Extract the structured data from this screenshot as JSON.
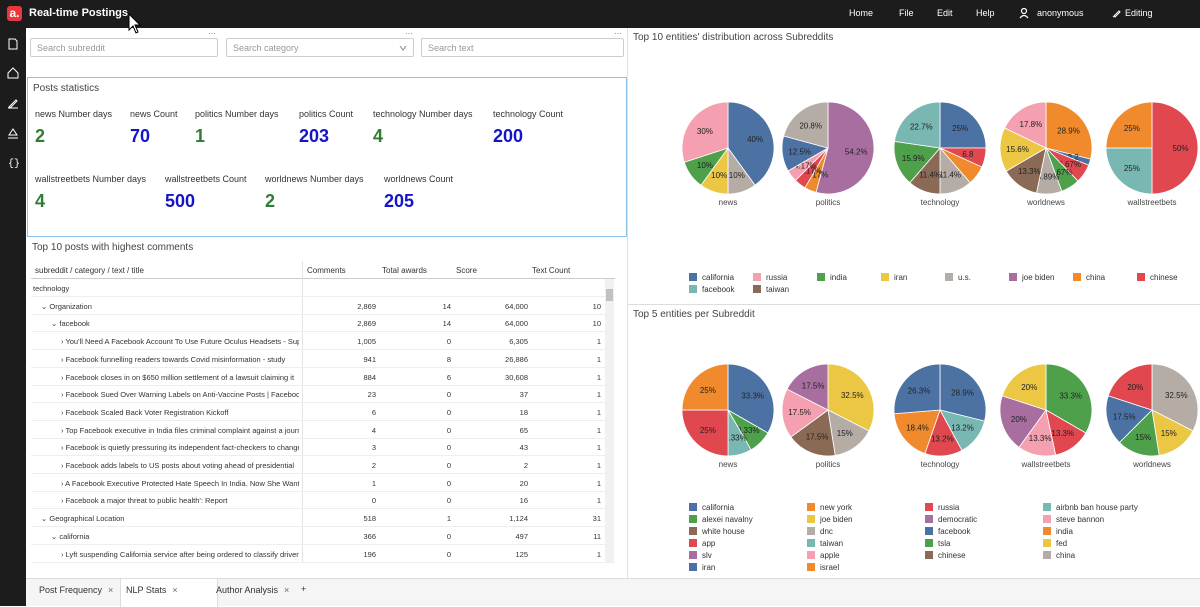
{
  "app": {
    "title": "Real-time Postings",
    "logo": "a."
  },
  "nav": {
    "home": "Home",
    "file": "File",
    "edit": "Edit",
    "help": "Help",
    "user": "anonymous",
    "editing": "Editing"
  },
  "filters": {
    "subreddit": "Search subreddit",
    "category": "Search category",
    "text": "Search text"
  },
  "stats": {
    "title": "Posts statistics",
    "items": [
      {
        "label": "news Number days",
        "value": "2",
        "color": "green"
      },
      {
        "label": "news Count",
        "value": "70",
        "color": "blue"
      },
      {
        "label": "politics Number days",
        "value": "1",
        "color": "green"
      },
      {
        "label": "politics Count",
        "value": "203",
        "color": "blue"
      },
      {
        "label": "technology Number days",
        "value": "4",
        "color": "green"
      },
      {
        "label": "technology Count",
        "value": "200",
        "color": "blue"
      },
      {
        "label": "wallstreetbets Number days",
        "value": "4",
        "color": "green"
      },
      {
        "label": "wallstreetbets Count",
        "value": "500",
        "color": "blue"
      },
      {
        "label": "worldnews Number days",
        "value": "2",
        "color": "green"
      },
      {
        "label": "worldnews Count",
        "value": "205",
        "color": "blue"
      }
    ]
  },
  "grid": {
    "title": "Top 10 posts with highest comments",
    "headers": [
      "subreddit / category / text / title",
      "Comments",
      "Total awards",
      "Score",
      "Text Count"
    ],
    "rows": [
      {
        "indent": 0,
        "label": "technology",
        "toggle": "",
        "c": "",
        "a": "",
        "s": "",
        "t": ""
      },
      {
        "indent": 1,
        "label": "Organization",
        "toggle": "⌄",
        "c": "2,869",
        "a": "14",
        "s": "64,000",
        "t": "10"
      },
      {
        "indent": 2,
        "label": "facebook",
        "toggle": "⌄",
        "c": "2,869",
        "a": "14",
        "s": "64,000",
        "t": "10"
      },
      {
        "indent": 3,
        "label": "You'll Need A Facebook Account To Use Future Oculus Headsets - Supporting",
        "toggle": "›",
        "c": "1,005",
        "a": "0",
        "s": "6,305",
        "t": "1"
      },
      {
        "indent": 3,
        "label": "Facebook funnelling readers towards Covid misinformation - study",
        "toggle": "›",
        "c": "941",
        "a": "8",
        "s": "26,886",
        "t": "1"
      },
      {
        "indent": 3,
        "label": "Facebook closes in on $650 million settlement of a lawsuit claiming it",
        "toggle": "›",
        "c": "884",
        "a": "6",
        "s": "30,608",
        "t": "1"
      },
      {
        "indent": 3,
        "label": "Facebook Sued Over Warning Labels on Anti-Vaccine Posts | Facebook",
        "toggle": "›",
        "c": "23",
        "a": "0",
        "s": "37",
        "t": "1"
      },
      {
        "indent": 3,
        "label": "Facebook Scaled Back Voter Registration Kickoff",
        "toggle": "›",
        "c": "6",
        "a": "0",
        "s": "18",
        "t": "1"
      },
      {
        "indent": 3,
        "label": "Top Facebook executive in India files criminal complaint against a journalist",
        "toggle": "›",
        "c": "4",
        "a": "0",
        "s": "65",
        "t": "1"
      },
      {
        "indent": 3,
        "label": "Facebook is quietly pressuring its independent fact-checkers to change",
        "toggle": "›",
        "c": "3",
        "a": "0",
        "s": "43",
        "t": "1"
      },
      {
        "indent": 3,
        "label": "Facebook adds labels to US posts about voting ahead of presidential",
        "toggle": "›",
        "c": "2",
        "a": "0",
        "s": "2",
        "t": "1"
      },
      {
        "indent": 3,
        "label": "A Facebook Executive Protected Hate Speech In India. Now She Wants",
        "toggle": "›",
        "c": "1",
        "a": "0",
        "s": "20",
        "t": "1"
      },
      {
        "indent": 3,
        "label": "Facebook a major threat to public health': Report",
        "toggle": "›",
        "c": "0",
        "a": "0",
        "s": "16",
        "t": "1"
      },
      {
        "indent": 1,
        "label": "Geographical Location",
        "toggle": "⌄",
        "c": "518",
        "a": "1",
        "s": "1,124",
        "t": "31"
      },
      {
        "indent": 2,
        "label": "california",
        "toggle": "⌄",
        "c": "366",
        "a": "0",
        "s": "497",
        "t": "11"
      },
      {
        "indent": 3,
        "label": "Lyft suspending California service after being ordered to classify drivers",
        "toggle": "›",
        "c": "196",
        "a": "0",
        "s": "125",
        "t": "1"
      }
    ]
  },
  "pies_top": {
    "title": "Top 10 entities' distribution across Subreddits",
    "pies": [
      {
        "name": "news",
        "slices": [
          {
            "v": 40,
            "c": "#4c72a4",
            "l": "40%"
          },
          {
            "v": 10,
            "c": "#b5aca6",
            "l": "10%"
          },
          {
            "v": 10,
            "c": "#ecc744",
            "l": "10%"
          },
          {
            "v": 10,
            "c": "#4ea04a",
            "l": "10%"
          },
          {
            "v": 30,
            "c": "#f4a0b0",
            "l": "30%"
          }
        ]
      },
      {
        "name": "politics",
        "slices": [
          {
            "v": 54.2,
            "c": "#a86ea0",
            "l": "54.2%"
          },
          {
            "v": 4.17,
            "c": "#f08a2c",
            "l": "4.17%"
          },
          {
            "v": 4.17,
            "c": "#e1474f",
            "l": "4.17%"
          },
          {
            "v": 4.17,
            "c": "#f4a0b0",
            "l": "4.17%"
          },
          {
            "v": 12.5,
            "c": "#4c72a4",
            "l": "12.5%"
          },
          {
            "v": 20.8,
            "c": "#b5aca6",
            "l": "20.8%"
          }
        ]
      },
      {
        "name": "technology",
        "slices": [
          {
            "v": 25,
            "c": "#4c72a4",
            "l": "25%"
          },
          {
            "v": 6.8,
            "c": "#e1474f",
            "l": "6.8"
          },
          {
            "v": 6.8,
            "c": "#f08a2c",
            "l": ""
          },
          {
            "v": 11.4,
            "c": "#b5aca6",
            "l": "11.4%"
          },
          {
            "v": 11.4,
            "c": "#8b6a55",
            "l": "11.4%"
          },
          {
            "v": 15.9,
            "c": "#4ea04a",
            "l": "15.9%"
          },
          {
            "v": 22.7,
            "c": "#79b7b2",
            "l": "22.7%"
          }
        ]
      },
      {
        "name": "worldnews",
        "slices": [
          {
            "v": 28.9,
            "c": "#f08a2c",
            "l": "28.9%"
          },
          {
            "v": 2.2,
            "c": "#4c72a4",
            "l": "2.2"
          },
          {
            "v": 6.67,
            "c": "#e1474f",
            "l": "6.67%"
          },
          {
            "v": 6.67,
            "c": "#4ea04a",
            "l": "6.67%"
          },
          {
            "v": 8.89,
            "c": "#b5aca6",
            "l": "8.89%"
          },
          {
            "v": 13.3,
            "c": "#8b6a55",
            "l": "13.3%"
          },
          {
            "v": 15.6,
            "c": "#ecc744",
            "l": "15.6%"
          },
          {
            "v": 17.8,
            "c": "#f4a0b0",
            "l": "17.8%"
          }
        ]
      },
      {
        "name": "wallstreetbets",
        "slices": [
          {
            "v": 50,
            "c": "#e1474f",
            "l": "50%"
          },
          {
            "v": 25,
            "c": "#79b7b2",
            "l": "25%"
          },
          {
            "v": 25,
            "c": "#f08a2c",
            "l": "25%"
          }
        ]
      }
    ],
    "legend": [
      {
        "label": "california",
        "c": "#4c72a4"
      },
      {
        "label": "russia",
        "c": "#f4a0b0"
      },
      {
        "label": "india",
        "c": "#4ea04a"
      },
      {
        "label": "iran",
        "c": "#ecc744"
      },
      {
        "label": "u.s.",
        "c": "#b5aca6"
      },
      {
        "label": "joe biden",
        "c": "#a86ea0"
      },
      {
        "label": "china",
        "c": "#f08a2c"
      },
      {
        "label": "chinese",
        "c": "#e1474f"
      },
      {
        "label": "facebook",
        "c": "#79b7b2"
      },
      {
        "label": "taiwan",
        "c": "#8b6a55"
      }
    ]
  },
  "pies_bottom": {
    "title": "Top 5 entities per Subreddit",
    "pies": [
      {
        "name": "news",
        "slices": [
          {
            "v": 33.3,
            "c": "#4c72a4",
            "l": "33.3%"
          },
          {
            "v": 8.33,
            "c": "#4ea04a",
            "l": "8.33%"
          },
          {
            "v": 8.33,
            "c": "#79b7b2",
            "l": "8.33%"
          },
          {
            "v": 25,
            "c": "#e1474f",
            "l": "25%"
          },
          {
            "v": 25,
            "c": "#f08a2c",
            "l": "25%"
          }
        ]
      },
      {
        "name": "politics",
        "slices": [
          {
            "v": 32.5,
            "c": "#ecc744",
            "l": "32.5%"
          },
          {
            "v": 15,
            "c": "#b5aca6",
            "l": "15%"
          },
          {
            "v": 17.5,
            "c": "#8b6a55",
            "l": "17.5%"
          },
          {
            "v": 17.5,
            "c": "#f4a0b0",
            "l": "17.5%"
          },
          {
            "v": 17.5,
            "c": "#a86ea0",
            "l": "17.5%"
          }
        ]
      },
      {
        "name": "technology",
        "slices": [
          {
            "v": 28.9,
            "c": "#4c72a4",
            "l": "28.9%"
          },
          {
            "v": 13.2,
            "c": "#79b7b2",
            "l": "13.2%"
          },
          {
            "v": 13.2,
            "c": "#e1474f",
            "l": "13.2%"
          },
          {
            "v": 18.4,
            "c": "#f08a2c",
            "l": "18.4%"
          },
          {
            "v": 26.3,
            "c": "#4c72a4",
            "l": "26.3%"
          }
        ]
      },
      {
        "name": "wallstreetbets",
        "slices": [
          {
            "v": 33.3,
            "c": "#4ea04a",
            "l": "33.3%"
          },
          {
            "v": 13.3,
            "c": "#e1474f",
            "l": "13.3%"
          },
          {
            "v": 13.3,
            "c": "#f4a0b0",
            "l": "13.3%"
          },
          {
            "v": 20,
            "c": "#a86ea0",
            "l": "20%"
          },
          {
            "v": 20,
            "c": "#ecc744",
            "l": "20%"
          }
        ]
      },
      {
        "name": "worldnews",
        "slices": [
          {
            "v": 32.5,
            "c": "#b5aca6",
            "l": "32.5%"
          },
          {
            "v": 15,
            "c": "#ecc744",
            "l": "15%"
          },
          {
            "v": 15,
            "c": "#4ea04a",
            "l": "15%"
          },
          {
            "v": 17.5,
            "c": "#4c72a4",
            "l": "17.5%"
          },
          {
            "v": 20,
            "c": "#e1474f",
            "l": "20%"
          }
        ]
      }
    ],
    "legend": [
      {
        "label": "california",
        "c": "#4c72a4"
      },
      {
        "label": "new york",
        "c": "#f08a2c"
      },
      {
        "label": "russia",
        "c": "#e1474f"
      },
      {
        "label": "airbnb ban house party",
        "c": "#79b7b2"
      },
      {
        "label": "alexei navalny",
        "c": "#4ea04a"
      },
      {
        "label": "joe biden",
        "c": "#ecc744"
      },
      {
        "label": "democratic",
        "c": "#a86ea0"
      },
      {
        "label": "steve bannon",
        "c": "#f4a0b0"
      },
      {
        "label": "white house",
        "c": "#8b6a55"
      },
      {
        "label": "dnc",
        "c": "#b5aca6"
      },
      {
        "label": "facebook",
        "c": "#4c72a4"
      },
      {
        "label": "india",
        "c": "#f08a2c"
      },
      {
        "label": "app",
        "c": "#e1474f"
      },
      {
        "label": "taiwan",
        "c": "#79b7b2"
      },
      {
        "label": "tsla",
        "c": "#4ea04a"
      },
      {
        "label": "fed",
        "c": "#ecc744"
      },
      {
        "label": "slv",
        "c": "#a86ea0"
      },
      {
        "label": "apple",
        "c": "#f4a0b0"
      },
      {
        "label": "chinese",
        "c": "#8b6a55"
      },
      {
        "label": "china",
        "c": "#b5aca6"
      },
      {
        "label": "iran",
        "c": "#4c72a4"
      },
      {
        "label": "israel",
        "c": "#f08a2c"
      }
    ]
  },
  "tabs": [
    {
      "label": "Post Frequency"
    },
    {
      "label": "NLP Stats"
    },
    {
      "label": "Author Analysis"
    }
  ],
  "tab_close": "×",
  "tab_add": "+"
}
